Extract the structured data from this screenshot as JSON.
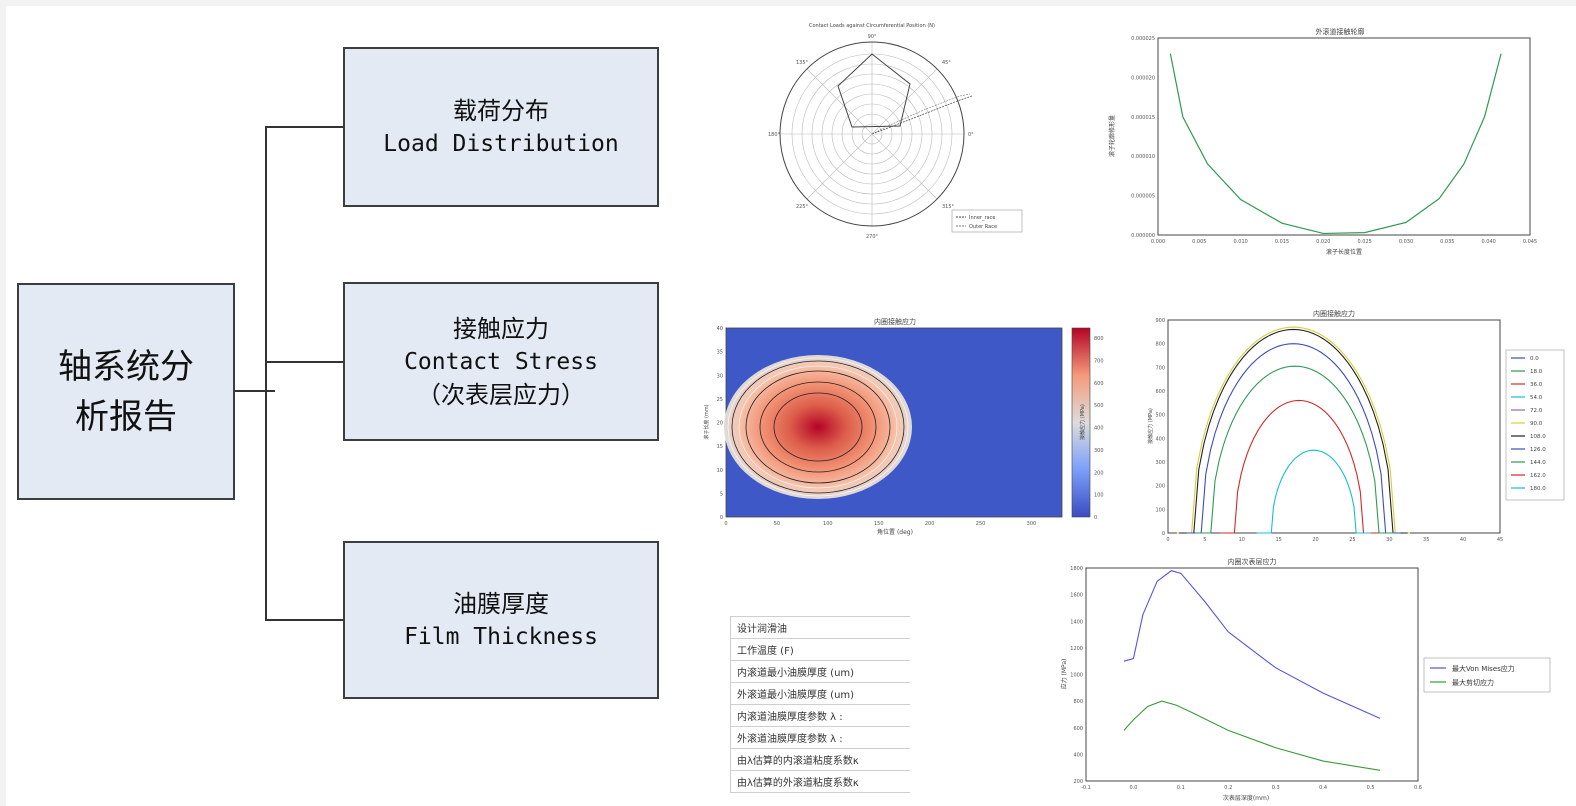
{
  "tree": {
    "root": {
      "line1": "轴系统分",
      "line2": "析报告"
    },
    "nodes": [
      {
        "zh": "载荷分布",
        "en": "Load Distribution"
      },
      {
        "zh": "接触应力",
        "en": "Contact Stress",
        "sub": "（次表层应力）"
      },
      {
        "zh": "油膜厚度",
        "en": "Film Thickness"
      }
    ]
  },
  "polar": {
    "title": "Contact Loads against Circumferential Position (N)",
    "angle_labels": [
      "90°",
      "45°",
      "0°",
      "315°",
      "270°",
      "225°",
      "180°",
      "135°"
    ],
    "legend": [
      "Inner_race",
      "Outer Race"
    ]
  },
  "profile_chart": {
    "title": "外滚道接触轮廓",
    "xlabel": "滚子长度位置",
    "ylabel": "滚子轮廓修形量",
    "yticks": [
      "0.000000",
      "0.000005",
      "0.000010",
      "0.000015",
      "0.000020",
      "0.000025"
    ],
    "xticks": [
      "0.000",
      "0.005",
      "0.010",
      "0.015",
      "0.020",
      "0.025",
      "0.030",
      "0.035",
      "0.040",
      "0.045"
    ],
    "color": "#2e9a55"
  },
  "heatmap": {
    "title": "内圈接触应力",
    "xlabel": "角位置 (deg)",
    "ylabel": "滚子长度 (mm)",
    "cbar_label": "接触应力 (MPa)",
    "xticks": [
      "0",
      "50",
      "100",
      "150",
      "200",
      "250",
      "300"
    ],
    "yticks": [
      "0",
      "5",
      "10",
      "15",
      "20",
      "25",
      "30",
      "35",
      "40"
    ],
    "cbar_ticks": [
      "0",
      "100",
      "200",
      "300",
      "400",
      "500",
      "600",
      "700",
      "800"
    ]
  },
  "stress_chart": {
    "title": "内圈接触应力",
    "ylabel": "接触应力 (MPa)",
    "xticks": [
      "0",
      "5",
      "10",
      "15",
      "20",
      "25",
      "30",
      "35",
      "40",
      "45"
    ],
    "yticks": [
      "0",
      "100",
      "200",
      "300",
      "400",
      "500",
      "600",
      "700",
      "800",
      "900"
    ],
    "legend": [
      {
        "label": "0.0",
        "color": "#3b4cc0"
      },
      {
        "label": "18.0",
        "color": "#2e9a55"
      },
      {
        "label": "36.0",
        "color": "#d62728"
      },
      {
        "label": "54.0",
        "color": "#17becf"
      },
      {
        "label": "72.0",
        "color": "#9467bd"
      },
      {
        "label": "90.0",
        "color": "#d4cf3a"
      },
      {
        "label": "108.0",
        "color": "#222222"
      },
      {
        "label": "126.0",
        "color": "#3b4cc0"
      },
      {
        "label": "144.0",
        "color": "#2e9a55"
      },
      {
        "label": "162.0",
        "color": "#d62728"
      },
      {
        "label": "180.0",
        "color": "#17becf"
      }
    ]
  },
  "subsurface_chart": {
    "title": "内圈次表层应力",
    "xlabel": "次表层深度(mm)",
    "ylabel": "应力 (MPa)",
    "xticks": [
      "-0.1",
      "0.0",
      "0.1",
      "0.2",
      "0.3",
      "0.4",
      "0.5",
      "0.6"
    ],
    "yticks": [
      "200",
      "400",
      "600",
      "800",
      "1000",
      "1200",
      "1400",
      "1600",
      "1800"
    ],
    "legend": [
      {
        "label": "最大Von Mises应力",
        "color": "#5555dd"
      },
      {
        "label": "最大剪切应力",
        "color": "#3a9a3a"
      }
    ]
  },
  "film_table": {
    "rows": [
      "设计润滑油",
      "工作温度 (F)",
      "内滚道最小油膜厚度 (um)",
      "外滚道最小油膜厚度 (um)",
      "内滚道油膜厚度参数 λ :",
      "外滚道油膜厚度参数 λ :",
      "由λ估算的内滚道粘度系数κ",
      "由λ估算的外滚道粘度系数κ"
    ]
  },
  "chart_data": [
    {
      "type": "line",
      "title": "外滚道接触轮廓",
      "xlabel": "滚子长度位置",
      "ylabel": "滚子轮廓修形量",
      "xlim": [
        0,
        0.045
      ],
      "ylim": [
        0,
        2.5e-05
      ],
      "series": [
        {
          "x": [
            0.0015,
            0.003,
            0.006,
            0.01,
            0.015,
            0.02,
            0.025,
            0.03,
            0.034,
            0.037,
            0.0395,
            0.0415
          ],
          "values": [
            2.3e-05,
            1.5e-05,
            9e-06,
            4.5e-06,
            1.5e-06,
            2e-07,
            3e-07,
            1.6e-06,
            4.6e-06,
            9e-06,
            1.5e-05,
            2.3e-05
          ]
        }
      ]
    },
    {
      "type": "line",
      "title": "内圈接触应力",
      "ylabel": "接触应力 (MPa)",
      "xlim": [
        0,
        45
      ],
      "ylim": [
        0,
        900
      ],
      "series": [
        {
          "name": "90.0",
          "peak": 870,
          "x0": 3.2,
          "x1": 30.8
        },
        {
          "name": "108.0",
          "peak": 860,
          "x0": 3.5,
          "x1": 30.5
        },
        {
          "name": "0.0",
          "peak": 800,
          "x0": 4.5,
          "x1": 29.5
        },
        {
          "name": "18.0",
          "peak": 705,
          "x0": 5.8,
          "x1": 28.6
        },
        {
          "name": "36.0",
          "peak": 560,
          "x0": 9.0,
          "x1": 26.5
        },
        {
          "name": "54.0",
          "peak": 350,
          "x0": 14.0,
          "x1": 25.5
        }
      ]
    },
    {
      "type": "line",
      "title": "内圈次表层应力",
      "xlabel": "次表层深度(mm)",
      "ylabel": "应力 (MPa)",
      "xlim": [
        -0.1,
        0.6
      ],
      "ylim": [
        200,
        1800
      ],
      "series": [
        {
          "name": "最大Von Mises应力",
          "x": [
            -0.02,
            0.0,
            0.02,
            0.05,
            0.08,
            0.1,
            0.15,
            0.2,
            0.3,
            0.4,
            0.52
          ],
          "values": [
            1100,
            1120,
            1450,
            1700,
            1780,
            1760,
            1550,
            1320,
            1050,
            860,
            670
          ]
        },
        {
          "name": "最大剪切应力",
          "x": [
            -0.02,
            0.0,
            0.03,
            0.06,
            0.09,
            0.12,
            0.2,
            0.3,
            0.4,
            0.52
          ],
          "values": [
            580,
            660,
            760,
            800,
            770,
            720,
            580,
            450,
            350,
            280
          ]
        }
      ]
    }
  ]
}
